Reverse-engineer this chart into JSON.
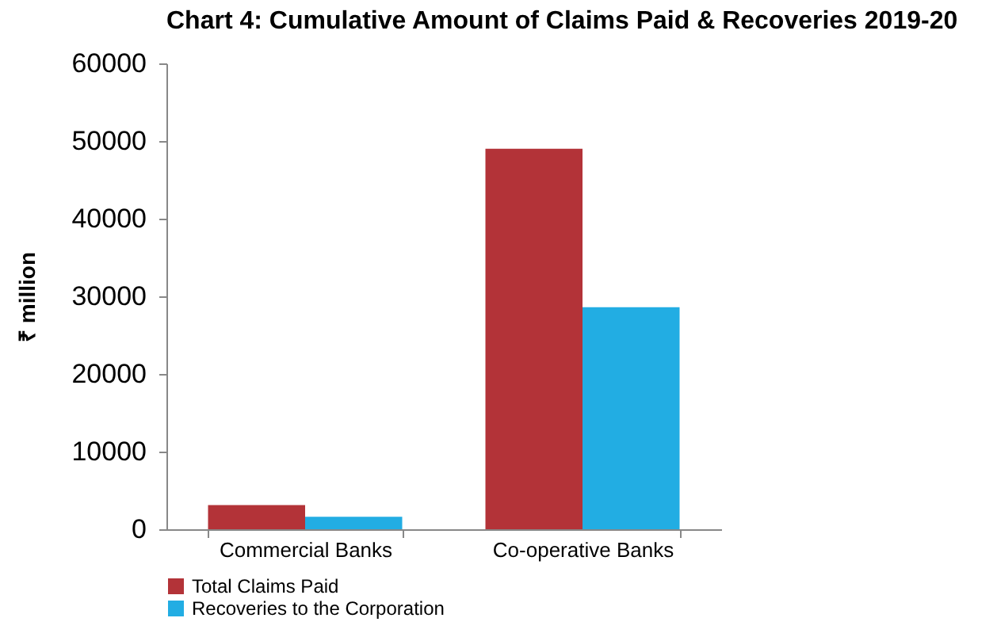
{
  "chart_data": {
    "type": "bar",
    "title": "Chart 4: Cumulative Amount of Claims Paid & Recoveries 2019-20",
    "ylabel": "₹ million",
    "categories": [
      "Commercial Banks",
      "Co-operative Banks"
    ],
    "series": [
      {
        "name": "Total Claims Paid",
        "color": "#b33338",
        "values": [
          3100,
          49000
        ]
      },
      {
        "name": "Recoveries to the Corporation",
        "color": "#22ade3",
        "values": [
          1600,
          28600
        ]
      }
    ],
    "ylim": [
      0,
      60000
    ],
    "yticks": [
      0,
      10000,
      20000,
      30000,
      40000,
      50000,
      60000
    ],
    "grid": false,
    "legend": "bottom left"
  }
}
